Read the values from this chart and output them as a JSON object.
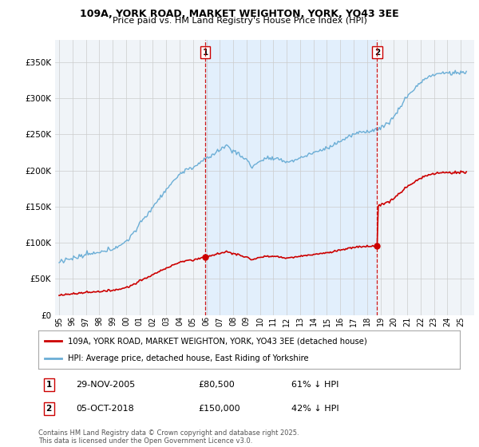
{
  "title": "109A, YORK ROAD, MARKET WEIGHTON, YORK, YO43 3EE",
  "subtitle": "Price paid vs. HM Land Registry's House Price Index (HPI)",
  "legend_line1": "109A, YORK ROAD, MARKET WEIGHTON, YORK, YO43 3EE (detached house)",
  "legend_line2": "HPI: Average price, detached house, East Riding of Yorkshire",
  "transaction1_date": "29-NOV-2005",
  "transaction1_price": "£80,500",
  "transaction1_hpi": "61% ↓ HPI",
  "transaction2_date": "05-OCT-2018",
  "transaction2_price": "£150,000",
  "transaction2_hpi": "42% ↓ HPI",
  "footnote": "Contains HM Land Registry data © Crown copyright and database right 2025.\nThis data is licensed under the Open Government Licence v3.0.",
  "hpi_color": "#6baed6",
  "price_color": "#cc0000",
  "vline_color": "#cc0000",
  "marker_color": "#cc0000",
  "shade_color": "#ddeeff",
  "ylim": [
    0,
    380000
  ],
  "yticks": [
    0,
    50000,
    100000,
    150000,
    200000,
    250000,
    300000,
    350000
  ],
  "background_color": "#ffffff",
  "plot_bg_color": "#f0f4f8",
  "t1_year": 2005.917,
  "t2_year": 2018.75,
  "t1_price": 80500,
  "t2_price": 150000
}
